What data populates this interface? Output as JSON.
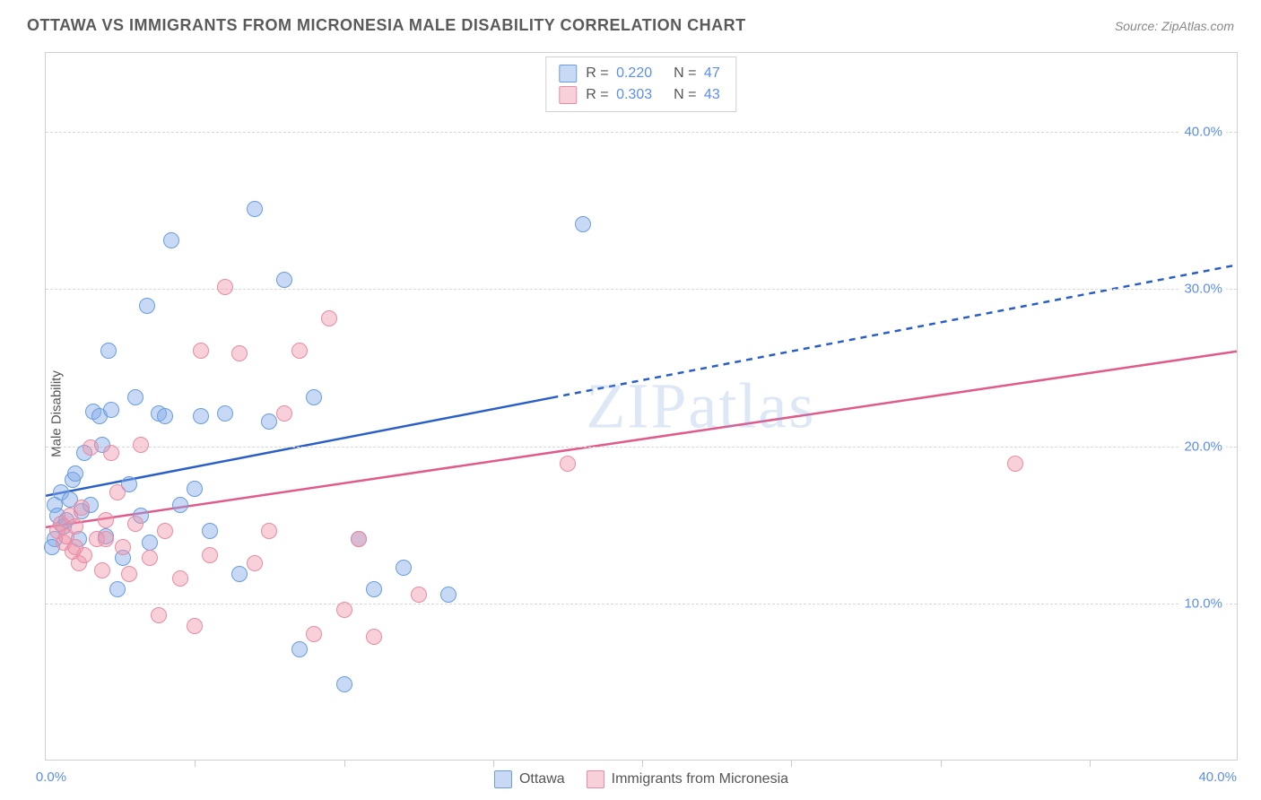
{
  "title": "OTTAWA VS IMMIGRANTS FROM MICRONESIA MALE DISABILITY CORRELATION CHART",
  "source": "Source: ZipAtlas.com",
  "ylabel": "Male Disability",
  "watermark": "ZIPatlas",
  "chart": {
    "type": "scatter",
    "xlim": [
      0,
      40
    ],
    "ylim": [
      0,
      45
    ],
    "background_color": "#ffffff",
    "grid_color": "#d8d8d8",
    "yticks": [
      {
        "value": 10,
        "label": "10.0%",
        "color": "#5b8def"
      },
      {
        "value": 20,
        "label": "20.0%",
        "color": "#5b8def"
      },
      {
        "value": 30,
        "label": "30.0%",
        "color": "#5b8def"
      },
      {
        "value": 40,
        "label": "40.0%",
        "color": "#5b8def"
      }
    ],
    "xticks": [
      0,
      5,
      10,
      15,
      20,
      25,
      30,
      35,
      40
    ],
    "x_origin_label": "0.0%",
    "x_end_label": "40.0%",
    "series": [
      {
        "name": "Ottawa",
        "fill": "rgba(130, 170, 230, 0.45)",
        "stroke": "#6a9de0",
        "line_color": "#2a5fc7",
        "line_width": 2.5,
        "line": {
          "x1": 0,
          "y1": 16.8,
          "x2": 40,
          "y2": 31.5,
          "dash_after_x": 17
        },
        "R": "0.220",
        "N": "47",
        "marker_r": 9,
        "points": [
          [
            0.3,
            16.2
          ],
          [
            0.4,
            15.5
          ],
          [
            0.5,
            17.0
          ],
          [
            0.6,
            14.8
          ],
          [
            0.7,
            15.2
          ],
          [
            0.8,
            16.5
          ],
          [
            0.9,
            17.8
          ],
          [
            1.0,
            18.2
          ],
          [
            1.1,
            14.0
          ],
          [
            1.2,
            15.8
          ],
          [
            1.3,
            19.5
          ],
          [
            1.5,
            16.2
          ],
          [
            1.6,
            22.1
          ],
          [
            1.8,
            21.8
          ],
          [
            2.0,
            14.2
          ],
          [
            2.1,
            26.0
          ],
          [
            2.2,
            22.2
          ],
          [
            2.4,
            10.8
          ],
          [
            2.6,
            12.8
          ],
          [
            2.8,
            17.5
          ],
          [
            3.0,
            23.0
          ],
          [
            3.2,
            15.5
          ],
          [
            3.4,
            28.8
          ],
          [
            3.5,
            13.8
          ],
          [
            3.8,
            22.0
          ],
          [
            4.0,
            21.8
          ],
          [
            4.2,
            33.0
          ],
          [
            4.5,
            16.2
          ],
          [
            5.0,
            17.2
          ],
          [
            5.2,
            21.8
          ],
          [
            5.5,
            14.5
          ],
          [
            6.0,
            22.0
          ],
          [
            6.5,
            11.8
          ],
          [
            7.0,
            35.0
          ],
          [
            7.5,
            21.5
          ],
          [
            8.0,
            30.5
          ],
          [
            8.5,
            7.0
          ],
          [
            9.0,
            23.0
          ],
          [
            10.0,
            4.8
          ],
          [
            10.5,
            14.0
          ],
          [
            11.0,
            10.8
          ],
          [
            12.0,
            12.2
          ],
          [
            13.5,
            10.5
          ],
          [
            18.0,
            34.0
          ],
          [
            0.3,
            14.0
          ],
          [
            1.9,
            20.0
          ],
          [
            0.2,
            13.5
          ]
        ]
      },
      {
        "name": "Immigrants from Micronesia",
        "fill": "rgba(240, 150, 170, 0.45)",
        "stroke": "#e88ba3",
        "line_color": "#e05a8a",
        "line_width": 2.5,
        "line": {
          "x1": 0,
          "y1": 14.8,
          "x2": 40,
          "y2": 26.0,
          "dash_after_x": 40
        },
        "R": "0.303",
        "N": "43",
        "marker_r": 9,
        "points": [
          [
            0.4,
            14.5
          ],
          [
            0.5,
            15.0
          ],
          [
            0.6,
            13.8
          ],
          [
            0.7,
            14.2
          ],
          [
            0.8,
            15.5
          ],
          [
            0.9,
            13.2
          ],
          [
            1.0,
            14.8
          ],
          [
            1.1,
            12.5
          ],
          [
            1.2,
            16.0
          ],
          [
            1.3,
            13.0
          ],
          [
            1.5,
            19.8
          ],
          [
            1.7,
            14.0
          ],
          [
            1.9,
            12.0
          ],
          [
            2.0,
            15.2
          ],
          [
            2.2,
            19.5
          ],
          [
            2.4,
            17.0
          ],
          [
            2.6,
            13.5
          ],
          [
            2.8,
            11.8
          ],
          [
            3.0,
            15.0
          ],
          [
            3.2,
            20.0
          ],
          [
            3.5,
            12.8
          ],
          [
            3.8,
            9.2
          ],
          [
            4.0,
            14.5
          ],
          [
            4.5,
            11.5
          ],
          [
            5.0,
            8.5
          ],
          [
            5.2,
            26.0
          ],
          [
            5.5,
            13.0
          ],
          [
            6.0,
            30.0
          ],
          [
            6.5,
            25.8
          ],
          [
            7.0,
            12.5
          ],
          [
            7.5,
            14.5
          ],
          [
            8.0,
            22.0
          ],
          [
            8.5,
            26.0
          ],
          [
            9.0,
            8.0
          ],
          [
            9.5,
            28.0
          ],
          [
            10.0,
            9.5
          ],
          [
            10.5,
            14.0
          ],
          [
            11.0,
            7.8
          ],
          [
            12.5,
            10.5
          ],
          [
            17.5,
            18.8
          ],
          [
            32.5,
            18.8
          ],
          [
            1.0,
            13.5
          ],
          [
            2.0,
            14.0
          ]
        ]
      }
    ]
  },
  "legend_bottom": [
    {
      "label": "Ottawa",
      "fill": "rgba(130,170,230,0.45)",
      "stroke": "#6a9de0"
    },
    {
      "label": "Immigrants from Micronesia",
      "fill": "rgba(240,150,170,0.45)",
      "stroke": "#e88ba3"
    }
  ]
}
